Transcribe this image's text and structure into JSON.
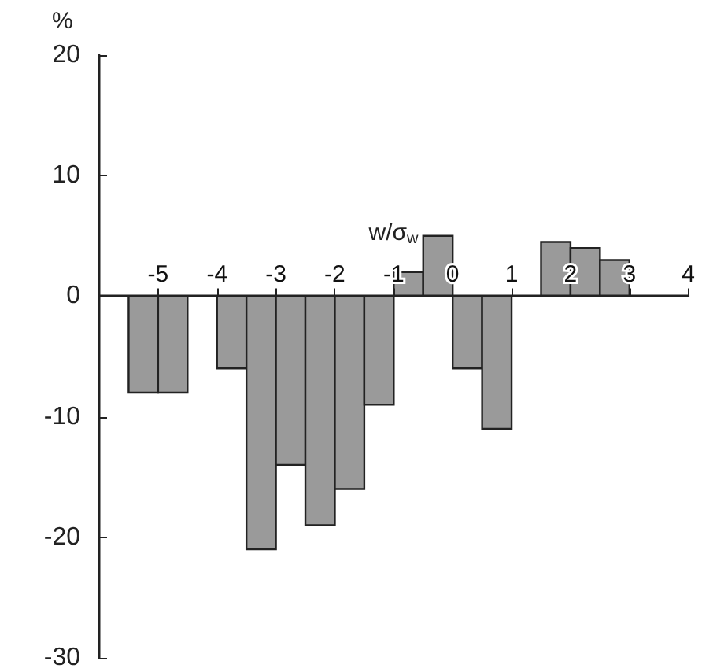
{
  "chart_data": {
    "type": "histogram",
    "ylabel": "%",
    "xlabel": "w/σ$_{w}$",
    "bins": [
      -5.5,
      -5,
      -4.5,
      -4,
      -3.5,
      -3,
      -2.5,
      -2,
      -1.5,
      -1,
      -0.5,
      0,
      0.5,
      1,
      1.5,
      2,
      2.5,
      3
    ],
    "values": [
      -8,
      -8,
      0,
      -6,
      -21,
      -14,
      -19,
      -16,
      -9,
      2,
      5,
      -6,
      -11,
      0,
      4.5,
      4,
      3
    ],
    "color": "#9a9a9a",
    "xlim": [
      -6,
      4
    ],
    "xticks": [
      -5,
      -4,
      -3,
      -2,
      -1,
      0,
      1,
      2,
      3,
      4
    ],
    "ylim": [
      -30,
      20
    ],
    "yticks": [
      -30,
      -20,
      -10,
      0,
      10,
      20
    ],
    "grid": false
  }
}
